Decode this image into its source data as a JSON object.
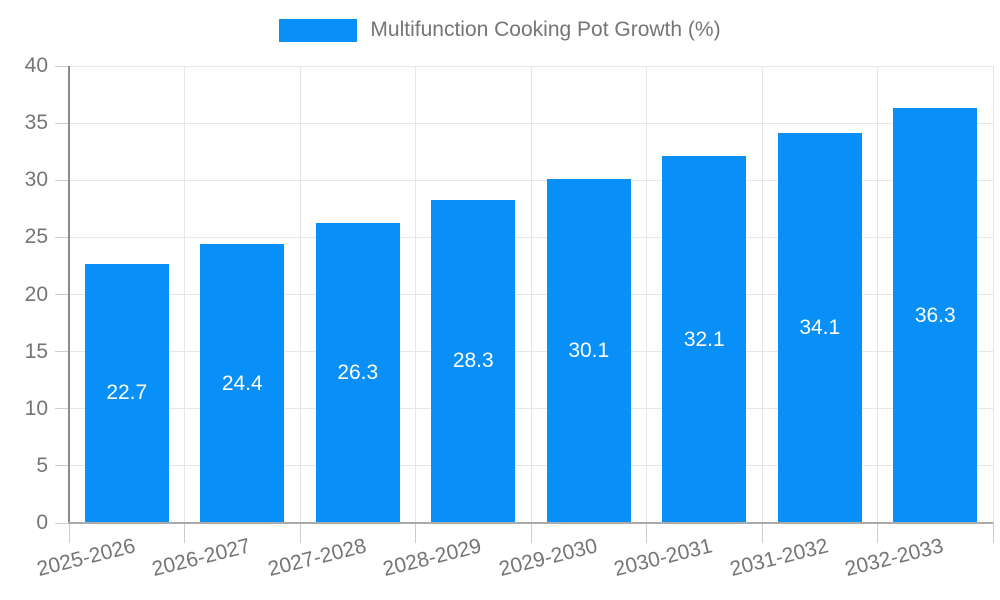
{
  "chart_data": {
    "type": "bar",
    "title": "Multifunction Cooking Pot Growth (%)",
    "categories": [
      "2025-2026",
      "2026-2027",
      "2027-2028",
      "2028-2029",
      "2029-2030",
      "2030-2031",
      "2031-2032",
      "2032-2033"
    ],
    "values": [
      22.7,
      24.4,
      26.3,
      28.3,
      30.1,
      32.1,
      34.1,
      36.3
    ],
    "xlabel": "",
    "ylabel": "",
    "ylim": [
      0,
      40
    ],
    "y_ticks": [
      0,
      5,
      10,
      15,
      20,
      25,
      30,
      35,
      40
    ],
    "grid": true,
    "legend_position": "top",
    "colors": {
      "bar": "#0890f8",
      "bar_value_text": "#ffffff",
      "axis_text": "#757575",
      "gridline": "#e6e6e6",
      "tick": "#cccccc",
      "y_axis_line": "#8c8c8c",
      "x_axis_line": "#aaaaaa",
      "background": "#ffffff"
    }
  },
  "legend": {
    "items": [
      {
        "label": "Multifunction Cooking Pot Growth (%)",
        "color": "#0890f8"
      }
    ]
  }
}
